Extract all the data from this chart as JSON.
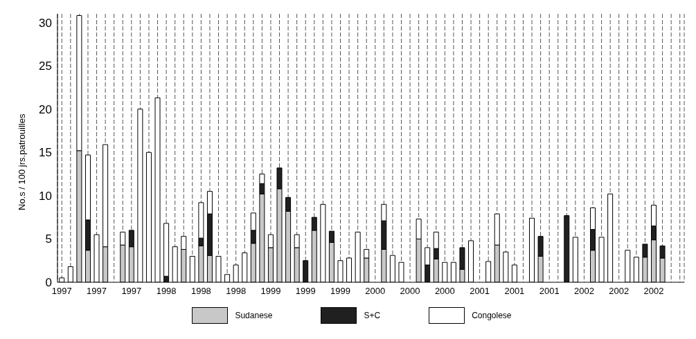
{
  "chart_data": {
    "type": "bar",
    "stacked": true,
    "ylabel": "No.s / 100 jrs.patrouilles",
    "categories": [
      "1997",
      null,
      null,
      null,
      "1997",
      null,
      null,
      null,
      "1997",
      null,
      null,
      null,
      "1998",
      null,
      null,
      null,
      "1998",
      null,
      null,
      null,
      "1998",
      null,
      null,
      null,
      "1999",
      null,
      null,
      null,
      "1999",
      null,
      null,
      null,
      "1999",
      null,
      null,
      null,
      "2000",
      null,
      null,
      null,
      "2000",
      null,
      null,
      null,
      "2000",
      null,
      null,
      null,
      "2001",
      null,
      null,
      null,
      "2001",
      null,
      null,
      null,
      "2001",
      null,
      null,
      null,
      "2002",
      null,
      null,
      null,
      "2002",
      null,
      null,
      null,
      "2002",
      null,
      null,
      null
    ],
    "series": [
      {
        "name": "Sudanese",
        "color": "#c8c8c8",
        "values": [
          0,
          0,
          15.2,
          3.7,
          0,
          4.1,
          0,
          4.3,
          4.1,
          0,
          0,
          0,
          0,
          0,
          3.8,
          0,
          4.2,
          3.1,
          0,
          0,
          0,
          0,
          4.5,
          10.2,
          4,
          10.8,
          8.2,
          4,
          0,
          6,
          0,
          4.6,
          0,
          0,
          0,
          2.8,
          0,
          3.8,
          0,
          0,
          0,
          5,
          0,
          2.7,
          0,
          0,
          1.5,
          0,
          0,
          0,
          4.3,
          0,
          0,
          0,
          0,
          3,
          0,
          0,
          0,
          0,
          0,
          3.7,
          0,
          0,
          0,
          0,
          0,
          2.9,
          4.9,
          2.8,
          0,
          0
        ]
      },
      {
        "name": "S+C",
        "color": "#202020",
        "values": [
          0,
          0,
          0,
          3.5,
          0,
          0,
          0,
          0,
          1.9,
          0,
          0,
          0,
          0.7,
          0,
          0,
          0,
          0.9,
          4.8,
          0,
          0,
          0,
          0,
          1.5,
          1.2,
          0,
          2.4,
          1.6,
          0,
          2.5,
          1.5,
          0,
          1.3,
          0,
          0,
          0,
          0,
          0,
          3.3,
          0,
          0,
          0,
          0,
          2,
          1.2,
          0,
          0,
          2.5,
          0,
          0,
          0,
          0,
          0,
          0,
          0,
          0,
          2.3,
          0,
          0,
          7.7,
          0,
          0,
          2.4,
          0,
          0,
          0,
          0,
          0,
          1.5,
          1.6,
          1.4,
          0,
          0
        ]
      },
      {
        "name": "Congolese",
        "color": "#ffffff",
        "values": [
          0.5,
          1.8,
          15.6,
          7.5,
          5.5,
          11.8,
          0,
          1.5,
          0,
          20,
          15,
          21.3,
          6.1,
          4.1,
          1.5,
          3,
          4.1,
          2.6,
          3,
          0.9,
          2,
          3.4,
          2,
          1.1,
          1.5,
          0,
          0,
          1.5,
          0,
          0,
          9,
          0,
          2.5,
          2.8,
          5.8,
          1,
          0,
          1.9,
          3.1,
          2.3,
          0,
          2.3,
          2,
          1.9,
          2.3,
          2.3,
          0,
          4.8,
          0,
          2.4,
          3.6,
          3.5,
          2,
          0,
          7.4,
          0,
          0,
          0,
          0,
          5.2,
          0,
          2.5,
          5.2,
          10.2,
          0,
          3.7,
          2.9,
          0,
          2.4,
          0,
          0,
          0
        ]
      }
    ],
    "ylim": [
      0,
      31
    ],
    "yticks": [
      0,
      5,
      10,
      15,
      20,
      25,
      30
    ],
    "grid": "x",
    "legend": "bottom"
  }
}
